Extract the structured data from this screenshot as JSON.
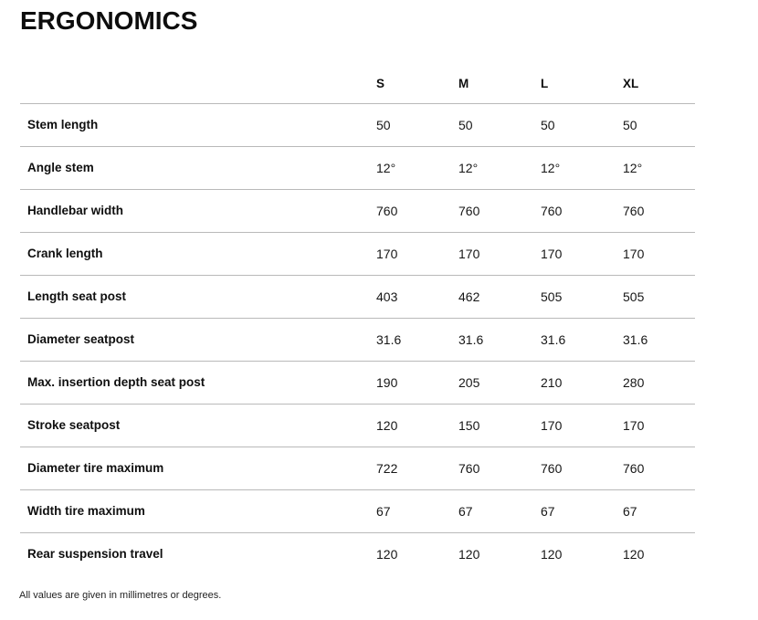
{
  "page": {
    "title": "ERGONOMICS",
    "footnote": "All values are given in millimetres or degrees."
  },
  "colors": {
    "text": "#111111",
    "divider": "#b9b9b9",
    "background": "#ffffff"
  },
  "table": {
    "size_headers": [
      "S",
      "M",
      "L",
      "XL"
    ],
    "rows": [
      {
        "label": "Stem length",
        "values": [
          "50",
          "50",
          "50",
          "50"
        ]
      },
      {
        "label": "Angle stem",
        "values": [
          "12°",
          "12°",
          "12°",
          "12°"
        ]
      },
      {
        "label": "Handlebar width",
        "values": [
          "760",
          "760",
          "760",
          "760"
        ]
      },
      {
        "label": "Crank length",
        "values": [
          "170",
          "170",
          "170",
          "170"
        ]
      },
      {
        "label": "Length seat post",
        "values": [
          "403",
          "462",
          "505",
          "505"
        ]
      },
      {
        "label": "Diameter seatpost",
        "values": [
          "31.6",
          "31.6",
          "31.6",
          "31.6"
        ]
      },
      {
        "label": "Max. insertion depth seat post",
        "values": [
          "190",
          "205",
          "210",
          "280"
        ]
      },
      {
        "label": "Stroke seatpost",
        "values": [
          "120",
          "150",
          "170",
          "170"
        ]
      },
      {
        "label": "Diameter tire maximum",
        "values": [
          "722",
          "760",
          "760",
          "760"
        ]
      },
      {
        "label": "Width tire maximum",
        "values": [
          "67",
          "67",
          "67",
          "67"
        ]
      },
      {
        "label": "Rear suspension travel",
        "values": [
          "120",
          "120",
          "120",
          "120"
        ]
      }
    ]
  }
}
